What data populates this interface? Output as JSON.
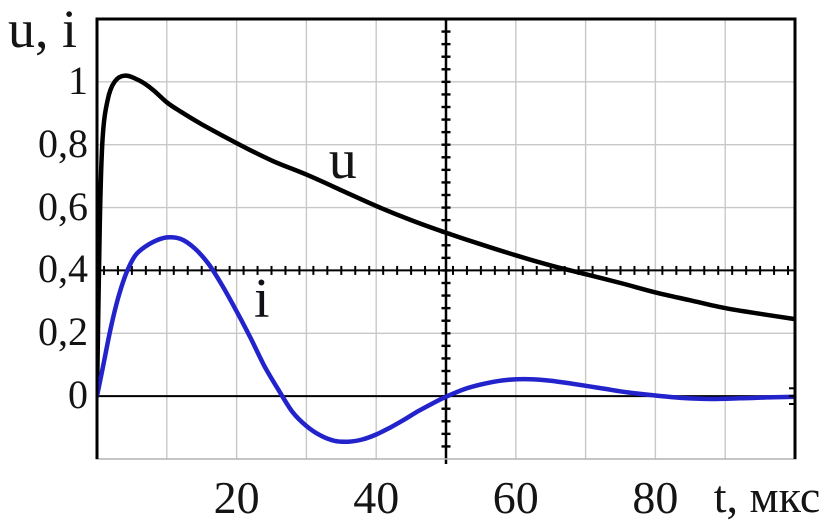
{
  "chart_data": {
    "type": "line",
    "title": "",
    "ylabel": "u, i",
    "xlabel": "t, мкс",
    "xlim": [
      0,
      100
    ],
    "ylim": [
      -0.2,
      1.2
    ],
    "grid": {
      "show": true,
      "x_step": 10,
      "y_step": 0.2,
      "color": "#c8c8c8"
    },
    "zero_line": {
      "y": 0,
      "color": "#000000"
    },
    "crossed_axes": {
      "x_position": 50,
      "y_position": 0.4,
      "x_minor_tick_step": 2,
      "y_minor_tick_step": 0.04,
      "color": "#000000"
    },
    "right_border_minor_ticks": [
      0.025,
      0,
      -0.025
    ],
    "x_ticks_labeled": [
      {
        "value": 20,
        "label": "20"
      },
      {
        "value": 40,
        "label": "40"
      },
      {
        "value": 60,
        "label": "60"
      },
      {
        "value": 80,
        "label": "80"
      }
    ],
    "y_ticks_labeled": [
      {
        "value": 1.0,
        "label": "1"
      },
      {
        "value": 0.8,
        "label": "0,8"
      },
      {
        "value": 0.6,
        "label": "0,6"
      },
      {
        "value": 0.4,
        "label": "0,4"
      },
      {
        "value": 0.2,
        "label": "0,2"
      },
      {
        "value": 0.0,
        "label": "0"
      }
    ],
    "series": [
      {
        "name": "u",
        "label": "u",
        "color": "#000000",
        "label_at": {
          "x": 35.2,
          "y": 0.752
        },
        "points": [
          [
            0,
            0
          ],
          [
            0.4,
            0.55
          ],
          [
            0.8,
            0.82
          ],
          [
            1.5,
            0.94
          ],
          [
            2.5,
            1.0
          ],
          [
            4,
            1.02
          ],
          [
            6,
            1.005
          ],
          [
            8,
            0.975
          ],
          [
            10,
            0.935
          ],
          [
            12,
            0.905
          ],
          [
            15,
            0.865
          ],
          [
            20,
            0.805
          ],
          [
            25,
            0.75
          ],
          [
            30,
            0.705
          ],
          [
            35,
            0.655
          ],
          [
            40,
            0.605
          ],
          [
            45,
            0.56
          ],
          [
            50,
            0.52
          ],
          [
            55,
            0.483
          ],
          [
            60,
            0.448
          ],
          [
            65,
            0.416
          ],
          [
            70,
            0.388
          ],
          [
            75,
            0.36
          ],
          [
            80,
            0.33
          ],
          [
            85,
            0.305
          ],
          [
            90,
            0.28
          ],
          [
            95,
            0.262
          ],
          [
            100,
            0.245
          ]
        ]
      },
      {
        "name": "i",
        "label": "i",
        "color": "#2323cc",
        "label_at": {
          "x": 23.6,
          "y": 0.308
        },
        "points": [
          [
            0,
            0
          ],
          [
            1,
            0.11
          ],
          [
            2,
            0.22
          ],
          [
            3,
            0.31
          ],
          [
            4,
            0.38
          ],
          [
            5,
            0.43
          ],
          [
            6,
            0.46
          ],
          [
            8,
            0.49
          ],
          [
            10,
            0.505
          ],
          [
            12,
            0.5
          ],
          [
            14,
            0.47
          ],
          [
            16,
            0.42
          ],
          [
            18,
            0.35
          ],
          [
            20,
            0.27
          ],
          [
            22,
            0.185
          ],
          [
            24,
            0.095
          ],
          [
            26,
            0.02
          ],
          [
            28,
            -0.05
          ],
          [
            30,
            -0.095
          ],
          [
            32,
            -0.125
          ],
          [
            34,
            -0.142
          ],
          [
            36,
            -0.145
          ],
          [
            38,
            -0.138
          ],
          [
            40,
            -0.122
          ],
          [
            42,
            -0.1
          ],
          [
            44,
            -0.075
          ],
          [
            46,
            -0.048
          ],
          [
            48,
            -0.024
          ],
          [
            50,
            -0.002
          ],
          [
            53,
            0.025
          ],
          [
            56,
            0.042
          ],
          [
            59,
            0.052
          ],
          [
            62,
            0.054
          ],
          [
            65,
            0.049
          ],
          [
            68,
            0.04
          ],
          [
            72,
            0.026
          ],
          [
            76,
            0.012
          ],
          [
            80,
            0.002
          ],
          [
            84,
            -0.006
          ],
          [
            88,
            -0.009
          ],
          [
            92,
            -0.007
          ],
          [
            96,
            -0.004
          ],
          [
            100,
            -0.002
          ]
        ]
      }
    ]
  },
  "frame": {
    "top_color": "#000000",
    "left_color": "#000000",
    "right_color": "#000000",
    "bottom_color": "#b2b2b2"
  }
}
